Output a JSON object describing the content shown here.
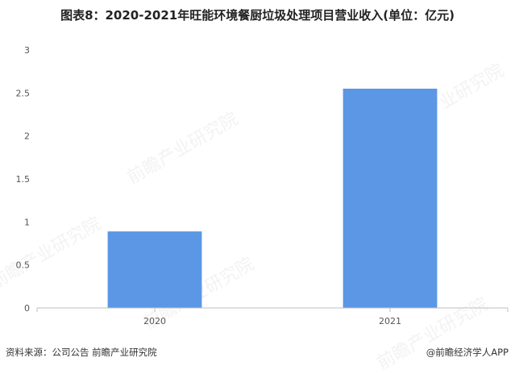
{
  "header": {
    "title": "图表8：2020-2021年旺能环境餐厨垃圾处理项目营业收入(单位：亿元)"
  },
  "footer": {
    "source": "资料来源：公司公告 前瞻产业研究院",
    "credit": "@前瞻经济学人APP"
  },
  "watermark": {
    "text": "前瞻产业研究院"
  },
  "colors": {
    "bar": "#5b97e5",
    "axis": "#bfbfbf",
    "tick_text": "#555555"
  },
  "chart_data": {
    "type": "bar",
    "title": "",
    "xlabel": "",
    "ylabel": "",
    "categories": [
      "2020",
      "2021"
    ],
    "values": [
      0.89,
      2.55
    ],
    "ylim": [
      0,
      3
    ],
    "yticks": [
      "0",
      "0.5",
      "1",
      "1.5",
      "2",
      "2.5",
      "3"
    ],
    "grid": false,
    "legend": "none"
  }
}
